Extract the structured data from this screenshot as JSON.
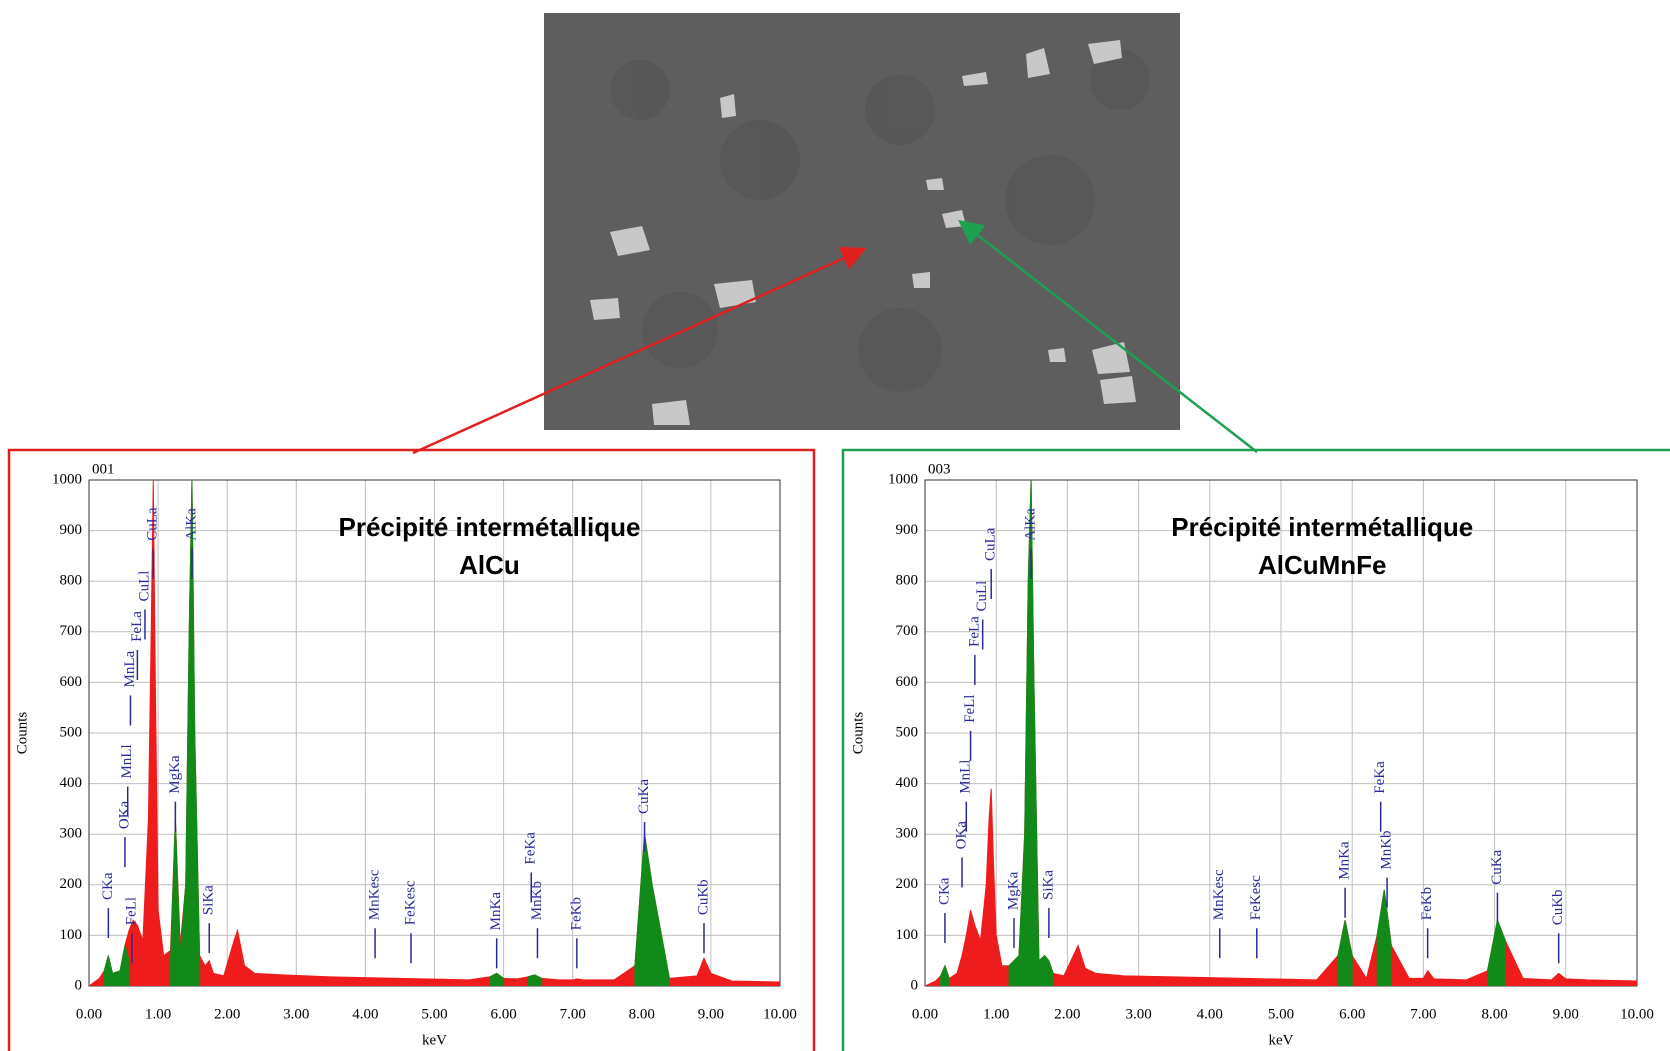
{
  "chart_data": [
    {
      "type": "area",
      "label": "001",
      "title": "Précipité intermétallique",
      "subtitle": "AlCu",
      "title_color": "#e0201f",
      "x_label": "keV",
      "y_label": "Counts",
      "grid": true,
      "xlim": [
        0,
        10
      ],
      "ylim": [
        0,
        1000
      ],
      "xticks": [
        {
          "value": 0,
          "label": "0.00"
        },
        {
          "value": 1,
          "label": "1.00"
        },
        {
          "value": 2,
          "label": "2.00"
        },
        {
          "value": 3,
          "label": "3.00"
        },
        {
          "value": 4,
          "label": "4.00"
        },
        {
          "value": 5,
          "label": "5.00"
        },
        {
          "value": 6,
          "label": "6.00"
        },
        {
          "value": 7,
          "label": "7.00"
        },
        {
          "value": 8,
          "label": "8.00"
        },
        {
          "value": 9,
          "label": "9.00"
        },
        {
          "value": 10,
          "label": "10.00"
        }
      ],
      "yticks": [
        0,
        100,
        200,
        300,
        400,
        500,
        600,
        700,
        800,
        900,
        1000
      ],
      "x": [
        0,
        0.15,
        0.22,
        0.28,
        0.34,
        0.45,
        0.52,
        0.58,
        0.64,
        0.7,
        0.78,
        0.86,
        0.9,
        0.93,
        0.96,
        1.0,
        1.08,
        1.18,
        1.25,
        1.32,
        1.4,
        1.45,
        1.49,
        1.53,
        1.6,
        1.68,
        1.74,
        1.8,
        1.95,
        2.1,
        2.15,
        2.25,
        2.4,
        2.8,
        3.5,
        4.5,
        5.5,
        5.8,
        5.9,
        6.0,
        6.2,
        6.35,
        6.45,
        6.55,
        6.8,
        7.0,
        7.06,
        7.15,
        7.6,
        7.9,
        8.04,
        8.15,
        8.4,
        8.8,
        8.9,
        9.0,
        9.3,
        10
      ],
      "series": [
        {
          "color": "#ee1c1c",
          "values": [
            0,
            15,
            30,
            60,
            25,
            30,
            80,
            110,
            130,
            120,
            90,
            330,
            700,
            1000,
            600,
            150,
            60,
            70,
            330,
            80,
            200,
            700,
            1000,
            500,
            60,
            40,
            50,
            25,
            20,
            90,
            110,
            40,
            25,
            22,
            18,
            15,
            12,
            18,
            25,
            15,
            14,
            18,
            22,
            15,
            12,
            12,
            14,
            12,
            12,
            40,
            300,
            200,
            15,
            20,
            55,
            25,
            10,
            8
          ]
        },
        {
          "color": "#128a1a",
          "values": [
            null,
            null,
            30,
            60,
            25,
            30,
            80,
            50,
            null,
            null,
            null,
            null,
            null,
            null,
            null,
            null,
            null,
            50,
            330,
            60,
            200,
            700,
            1000,
            500,
            60,
            null,
            null,
            null,
            null,
            null,
            null,
            null,
            null,
            null,
            null,
            null,
            null,
            18,
            25,
            15,
            null,
            18,
            22,
            15,
            null,
            null,
            null,
            null,
            null,
            40,
            300,
            200,
            15,
            null,
            null,
            null,
            null,
            null
          ]
        }
      ],
      "annotations": [
        {
          "text": "CKa",
          "x": 0.28,
          "y": 170
        },
        {
          "text": "FeLl",
          "x": 0.62,
          "y": 120
        },
        {
          "text": "OKa",
          "x": 0.52,
          "y": 310
        },
        {
          "text": "MnLl",
          "x": 0.56,
          "y": 410
        },
        {
          "text": "MnLa",
          "x": 0.6,
          "y": 590
        },
        {
          "text": "FeLa",
          "x": 0.7,
          "y": 680
        },
        {
          "text": "CuLl",
          "x": 0.81,
          "y": 760
        },
        {
          "text": "CuLa",
          "x": 0.93,
          "y": 880
        },
        {
          "text": "MgKa",
          "x": 1.25,
          "y": 380
        },
        {
          "text": "AlKa",
          "x": 1.49,
          "y": 880
        },
        {
          "text": "SiKa",
          "x": 1.74,
          "y": 140
        },
        {
          "text": "MnKesc",
          "x": 4.14,
          "y": 130
        },
        {
          "text": "FeKesc",
          "x": 4.66,
          "y": 120
        },
        {
          "text": "MnKa",
          "x": 5.9,
          "y": 110
        },
        {
          "text": "FeKa",
          "x": 6.4,
          "y": 240
        },
        {
          "text": "MnKb",
          "x": 6.49,
          "y": 130
        },
        {
          "text": "FeKb",
          "x": 7.06,
          "y": 110
        },
        {
          "text": "CuKa",
          "x": 8.04,
          "y": 340
        },
        {
          "text": "CuKb",
          "x": 8.9,
          "y": 140
        }
      ]
    },
    {
      "type": "area",
      "label": "003",
      "title": "Précipité intermétallique",
      "subtitle": "AlCuMnFe",
      "title_color": "#1fa050",
      "x_label": "keV",
      "y_label": "Counts",
      "grid": true,
      "xlim": [
        0,
        10
      ],
      "ylim": [
        0,
        1000
      ],
      "xticks": [
        {
          "value": 0,
          "label": "0.00"
        },
        {
          "value": 1,
          "label": "1.00"
        },
        {
          "value": 2,
          "label": "2.00"
        },
        {
          "value": 3,
          "label": "3.00"
        },
        {
          "value": 4,
          "label": "4.00"
        },
        {
          "value": 5,
          "label": "5.00"
        },
        {
          "value": 6,
          "label": "6.00"
        },
        {
          "value": 7,
          "label": "7.00"
        },
        {
          "value": 8,
          "label": "8.00"
        },
        {
          "value": 9,
          "label": "9.00"
        },
        {
          "value": 10,
          "label": "10.00"
        }
      ],
      "yticks": [
        0,
        100,
        200,
        300,
        400,
        500,
        600,
        700,
        800,
        900,
        1000
      ],
      "x": [
        0,
        0.15,
        0.22,
        0.28,
        0.34,
        0.45,
        0.52,
        0.58,
        0.64,
        0.7,
        0.78,
        0.86,
        0.9,
        0.93,
        0.96,
        1.0,
        1.08,
        1.18,
        1.25,
        1.32,
        1.4,
        1.45,
        1.49,
        1.53,
        1.6,
        1.68,
        1.74,
        1.8,
        1.95,
        2.1,
        2.15,
        2.25,
        2.4,
        2.8,
        3.5,
        4.5,
        5.5,
        5.8,
        5.9,
        6.0,
        6.2,
        6.35,
        6.45,
        6.55,
        6.8,
        7.0,
        7.06,
        7.15,
        7.6,
        7.9,
        8.04,
        8.15,
        8.4,
        8.8,
        8.9,
        9.0,
        9.3,
        10
      ],
      "series": [
        {
          "color": "#ee1c1c",
          "values": [
            0,
            10,
            20,
            40,
            15,
            25,
            60,
            100,
            150,
            120,
            90,
            200,
            330,
            390,
            250,
            100,
            40,
            40,
            50,
            60,
            300,
            800,
            1000,
            600,
            50,
            60,
            50,
            25,
            20,
            65,
            80,
            35,
            25,
            20,
            18,
            15,
            12,
            60,
            130,
            60,
            15,
            100,
            190,
            80,
            15,
            15,
            30,
            14,
            12,
            30,
            130,
            90,
            15,
            12,
            25,
            14,
            12,
            10
          ]
        },
        {
          "color": "#128a1a",
          "values": [
            null,
            null,
            20,
            40,
            15,
            null,
            null,
            null,
            null,
            null,
            null,
            null,
            null,
            null,
            null,
            null,
            null,
            40,
            50,
            60,
            300,
            800,
            1000,
            600,
            50,
            60,
            50,
            25,
            null,
            null,
            null,
            null,
            null,
            null,
            null,
            null,
            null,
            60,
            130,
            60,
            null,
            100,
            190,
            80,
            null,
            null,
            null,
            null,
            null,
            30,
            130,
            90,
            null,
            null,
            null,
            null,
            null,
            null
          ]
        }
      ],
      "annotations": [
        {
          "text": "CKa",
          "x": 0.28,
          "y": 160
        },
        {
          "text": "OKa",
          "x": 0.52,
          "y": 270
        },
        {
          "text": "MnLl",
          "x": 0.58,
          "y": 380
        },
        {
          "text": "FeLl",
          "x": 0.64,
          "y": 520
        },
        {
          "text": "FeLa",
          "x": 0.7,
          "y": 670
        },
        {
          "text": "CuLl",
          "x": 0.81,
          "y": 740
        },
        {
          "text": "CuLa",
          "x": 0.93,
          "y": 840
        },
        {
          "text": "MgKa",
          "x": 1.25,
          "y": 150
        },
        {
          "text": "AlKa",
          "x": 1.49,
          "y": 880
        },
        {
          "text": "SiKa",
          "x": 1.74,
          "y": 170
        },
        {
          "text": "MnKesc",
          "x": 4.14,
          "y": 130
        },
        {
          "text": "FeKesc",
          "x": 4.66,
          "y": 130
        },
        {
          "text": "MnKa",
          "x": 5.9,
          "y": 210
        },
        {
          "text": "FeKa",
          "x": 6.4,
          "y": 380
        },
        {
          "text": "MnKb",
          "x": 6.49,
          "y": 230
        },
        {
          "text": "FeKb",
          "x": 7.06,
          "y": 130
        },
        {
          "text": "CuKa",
          "x": 8.04,
          "y": 200
        },
        {
          "text": "CuKb",
          "x": 8.9,
          "y": 120
        }
      ]
    }
  ]
}
